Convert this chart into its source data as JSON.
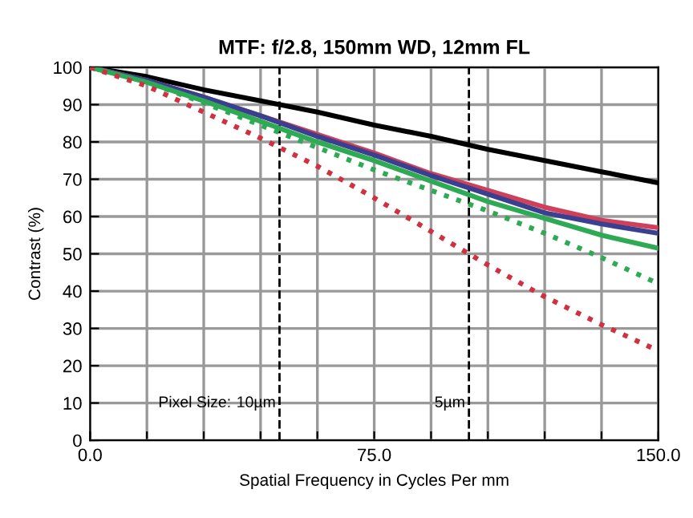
{
  "chart_data": {
    "type": "line",
    "title": "MTF: f/2.8, 150mm WD, 12mm FL",
    "xlabel": "Spatial Frequency in Cycles Per mm",
    "ylabel": "Contrast (%)",
    "x": [
      0,
      15,
      30,
      45,
      60,
      75,
      90,
      105,
      120,
      135,
      150
    ],
    "series": [
      {
        "color": "#000000",
        "line_style": "solid",
        "values": [
          100,
          97.5,
          94,
          91,
          88,
          84.5,
          81.5,
          78,
          75,
          72,
          69
        ]
      },
      {
        "color": "#d0405a",
        "line_style": "solid",
        "values": [
          100,
          96.5,
          92,
          87,
          82,
          77,
          71.5,
          67,
          62.5,
          59,
          57
        ]
      },
      {
        "color": "#3a3f8f",
        "line_style": "solid",
        "values": [
          100,
          96.5,
          92,
          87,
          81.5,
          76.5,
          71,
          66,
          61,
          58,
          55.5
        ]
      },
      {
        "color": "#2eaa55",
        "line_style": "solid",
        "values": [
          100,
          96,
          91,
          85.5,
          80,
          75,
          69.5,
          64,
          59.5,
          55,
          51.5
        ]
      },
      {
        "color": "#2eaa55",
        "line_style": "dotted",
        "values": [
          100,
          96,
          90.5,
          84.5,
          78.5,
          72.5,
          67,
          61.5,
          55.5,
          49,
          42
        ]
      },
      {
        "color": "#d03040",
        "line_style": "dotted",
        "values": [
          100,
          95,
          88,
          81,
          73.5,
          65,
          56,
          47,
          38.5,
          31,
          24
        ]
      }
    ],
    "xlim": [
      0,
      150
    ],
    "ylim": [
      0,
      100
    ],
    "xticks": [
      {
        "value": 0,
        "label": "0.0"
      },
      {
        "value": 15,
        "label": null
      },
      {
        "value": 30,
        "label": null
      },
      {
        "value": 45,
        "label": null
      },
      {
        "value": 60,
        "label": null
      },
      {
        "value": 75,
        "label": "75.0"
      },
      {
        "value": 90,
        "label": null
      },
      {
        "value": 105,
        "label": null
      },
      {
        "value": 120,
        "label": null
      },
      {
        "value": 135,
        "label": null
      },
      {
        "value": 150,
        "label": "150.0"
      }
    ],
    "yticks": [
      0,
      10,
      20,
      30,
      40,
      50,
      60,
      70,
      80,
      90,
      100
    ],
    "ref_lines": [
      {
        "axis": "x",
        "value": 50,
        "label": "10µm",
        "color": "#000000",
        "line_style": "dashed"
      },
      {
        "axis": "x",
        "value": 100,
        "label": "5µm",
        "color": "#000000",
        "line_style": "dashed"
      }
    ],
    "annotations": [
      "Pixel Size:"
    ],
    "grid": true,
    "marker": "none"
  }
}
